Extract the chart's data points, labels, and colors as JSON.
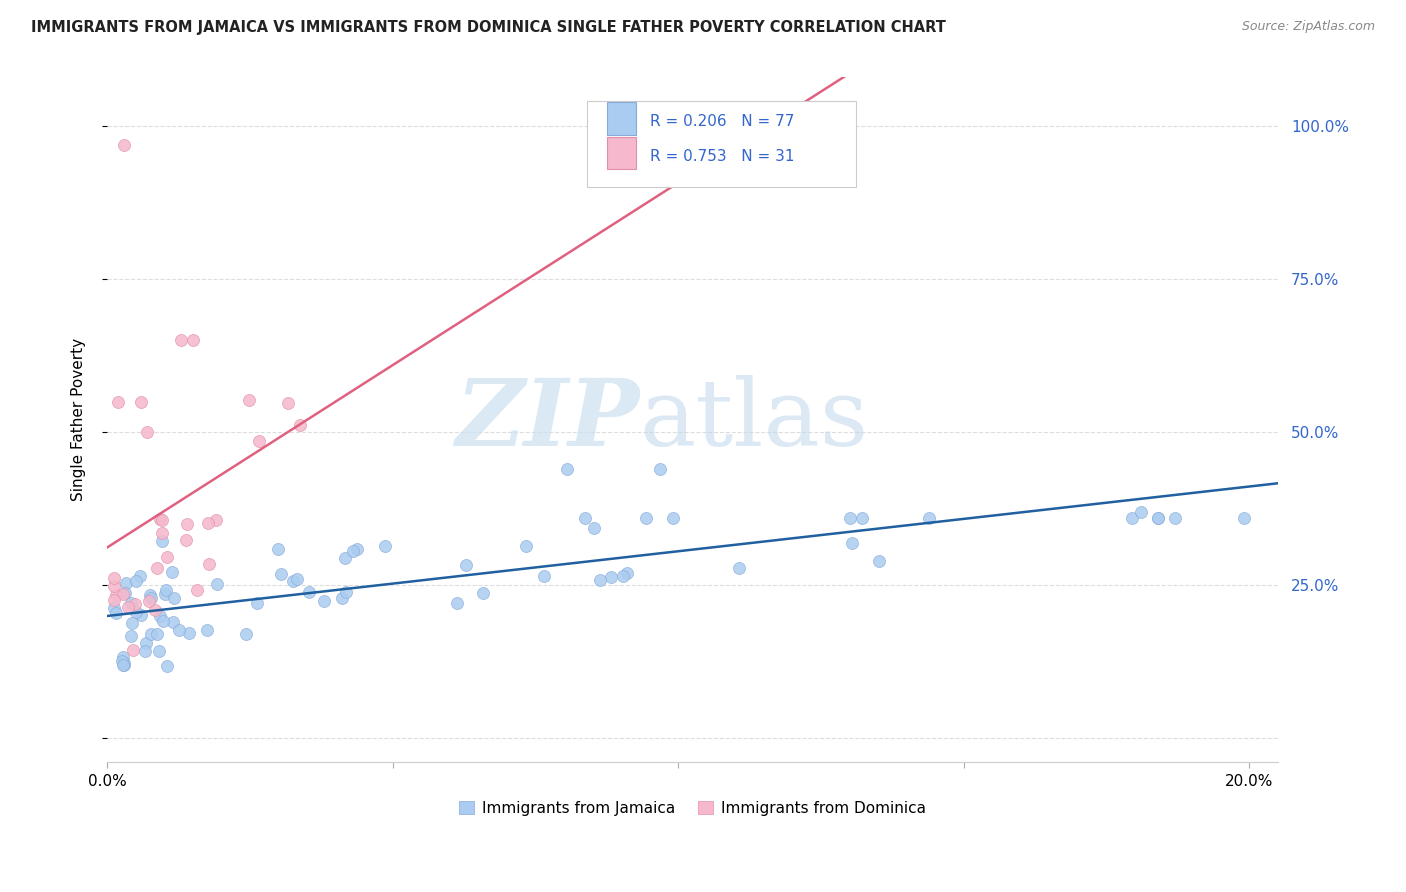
{
  "title": "IMMIGRANTS FROM JAMAICA VS IMMIGRANTS FROM DOMINICA SINGLE FATHER POVERTY CORRELATION CHART",
  "source": "Source: ZipAtlas.com",
  "ylabel": "Single Father Poverty",
  "ytick_positions": [
    0.0,
    0.25,
    0.5,
    0.75,
    1.0
  ],
  "ytick_labels": [
    "",
    "25.0%",
    "50.0%",
    "75.0%",
    "100.0%"
  ],
  "xtick_positions": [
    0.0,
    0.05,
    0.1,
    0.15,
    0.2
  ],
  "xtick_labels": [
    "0.0%",
    "",
    "",
    "",
    "20.0%"
  ],
  "xlim": [
    0.0,
    0.205
  ],
  "ylim": [
    -0.04,
    1.08
  ],
  "jamaica_color": "#aaccf0",
  "jamaica_edge_color": "#88aad8",
  "dominica_color": "#f5b8cc",
  "dominica_edge_color": "#e090a8",
  "jamaica_line_color": "#2060a0",
  "dominica_line_color": "#e06080",
  "r_n_color": "#3366cc",
  "grid_color": "#dddddd",
  "legend_label_jamaica": "Immigrants from Jamaica",
  "legend_label_dominica": "Immigrants from Dominica",
  "jamaica_R": "0.206",
  "jamaica_N": "77",
  "dominica_R": "0.753",
  "dominica_N": "31"
}
